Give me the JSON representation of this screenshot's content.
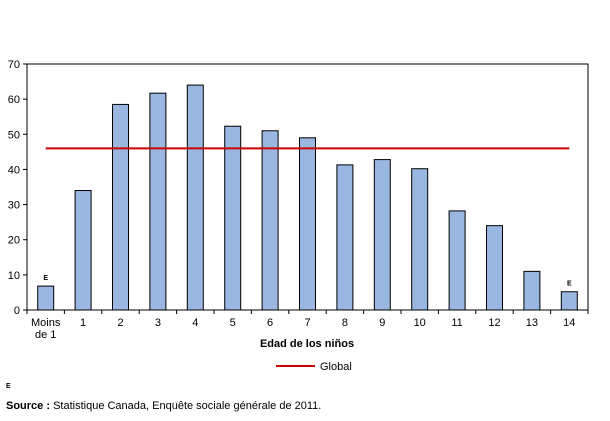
{
  "chart_data": {
    "type": "bar",
    "title": "",
    "xlabel": "Edad de los niños",
    "ylabel": "",
    "ylim": [
      0,
      70
    ],
    "yticks": [
      0,
      10,
      20,
      30,
      40,
      50,
      60,
      70
    ],
    "categories": [
      "Moins de 1",
      "1",
      "2",
      "3",
      "4",
      "5",
      "6",
      "7",
      "8",
      "9",
      "10",
      "11",
      "12",
      "13",
      "14"
    ],
    "category_lines": [
      [
        "Moins",
        "de 1"
      ],
      [
        "1"
      ],
      [
        "2"
      ],
      [
        "3"
      ],
      [
        "4"
      ],
      [
        "5"
      ],
      [
        "6"
      ],
      [
        "7"
      ],
      [
        "8"
      ],
      [
        "9"
      ],
      [
        "10"
      ],
      [
        "11"
      ],
      [
        "12"
      ],
      [
        "13"
      ],
      [
        "14"
      ]
    ],
    "values": [
      6.8,
      34,
      58.5,
      61.7,
      64,
      52.3,
      51,
      49,
      41.3,
      42.8,
      40.2,
      28.2,
      24,
      11,
      5.2
    ],
    "flags": [
      "E",
      "",
      "",
      "",
      "",
      "",
      "",
      "",
      "",
      "",
      "",
      "",
      "",
      "",
      "E"
    ],
    "reference_line": {
      "name": "Global",
      "value": 46,
      "color": "#cc0000"
    },
    "bar_color": "#99b7e0",
    "bar_edge_color": "#000000",
    "grid": false,
    "legend_position": "bottom"
  },
  "footnotes": {
    "flag": "E",
    "source_label": "Source :",
    "source_text": " Statistique Canada, Enquête sociale générale de 2011."
  }
}
